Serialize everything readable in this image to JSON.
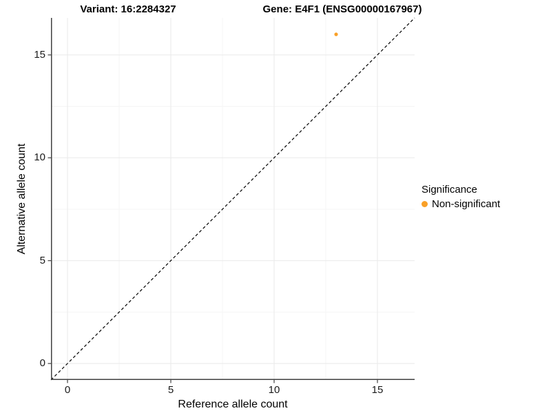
{
  "chart_data": {
    "type": "scatter",
    "title_left": "Variant: 16:2284327",
    "title_right": "Gene: E4F1 (ENSG00000167967)",
    "xlabel": "Reference allele count",
    "ylabel": "Alternative allele count",
    "xlim": [
      -0.8,
      16.8
    ],
    "ylim": [
      -0.8,
      16.8
    ],
    "x_major_ticks": [
      0,
      5,
      10,
      15
    ],
    "y_major_ticks": [
      0,
      5,
      10,
      15
    ],
    "x_minor_gridlines": [
      2.5,
      7.5,
      12.5
    ],
    "y_minor_gridlines": [
      2.5,
      7.5,
      12.5
    ],
    "grid": "major-and-minor",
    "reference_line": {
      "kind": "identity y=x",
      "linetype": "dashed",
      "color": "#000000"
    },
    "series": [
      {
        "name": "Non-significant",
        "color": "#F9A028",
        "points": [
          [
            13,
            16
          ]
        ]
      }
    ],
    "legend": {
      "position": "right",
      "title": "Significance",
      "entries": [
        {
          "label": "Non-significant",
          "color": "#F9A028"
        }
      ]
    }
  },
  "style": {
    "background": "#FFFFFF",
    "axis_line_color": "#3F3F3F",
    "tick_mark_color": "#3F3F3F",
    "tick_label_color": "#1A1A1A",
    "major_grid_color": "#EBEBEB",
    "minor_grid_color": "#F5F5F5",
    "title_color": "#000000",
    "dashed_line_color": "#000000"
  }
}
